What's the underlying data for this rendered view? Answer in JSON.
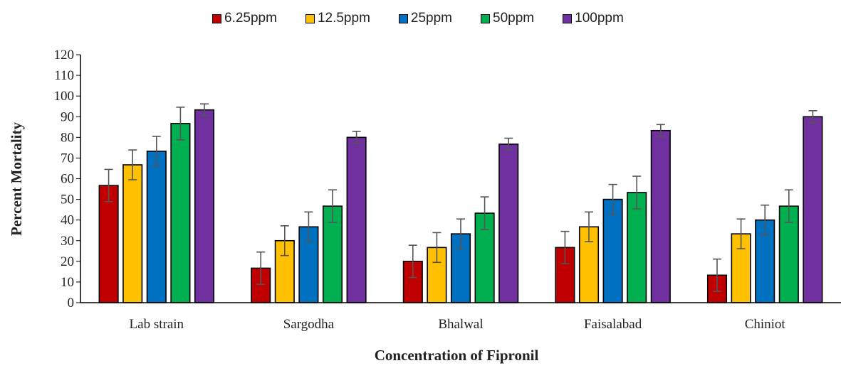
{
  "chart_data": {
    "type": "bar",
    "title": "",
    "xlabel": "Concentration of Fipronil",
    "ylabel": "Percent Mortality",
    "ylim": [
      0,
      120
    ],
    "yticks": [
      0,
      10,
      20,
      30,
      40,
      50,
      60,
      70,
      80,
      90,
      100,
      110,
      120
    ],
    "grid": false,
    "legend_position": "top",
    "categories": [
      "Lab strain",
      "Sargodha",
      "Bhalwal",
      "Faisalabad",
      "Chiniot"
    ],
    "series": [
      {
        "name": "6.25ppm",
        "color": "#C00000",
        "values": [
          56.7,
          16.7,
          20.0,
          26.7,
          13.3
        ],
        "errors": [
          7.8,
          7.8,
          7.8,
          7.8,
          7.8
        ]
      },
      {
        "name": "12.5ppm",
        "color": "#FFC000",
        "values": [
          66.7,
          30.0,
          26.7,
          36.7,
          33.3
        ],
        "errors": [
          7.2,
          7.2,
          7.2,
          7.2,
          7.2
        ]
      },
      {
        "name": "25ppm",
        "color": "#0070C0",
        "values": [
          73.3,
          36.7,
          33.3,
          50.0,
          40.0
        ],
        "errors": [
          7.2,
          7.2,
          7.2,
          7.2,
          7.2
        ]
      },
      {
        "name": "50ppm",
        "color": "#00B050",
        "values": [
          86.7,
          46.7,
          43.3,
          53.3,
          46.7
        ],
        "errors": [
          7.9,
          7.9,
          7.9,
          7.9,
          7.9
        ]
      },
      {
        "name": "100ppm",
        "color": "#7030A0",
        "values": [
          93.3,
          80.0,
          76.7,
          83.3,
          90.0
        ],
        "errors": [
          2.9,
          2.9,
          2.9,
          2.9,
          2.9
        ]
      }
    ]
  }
}
